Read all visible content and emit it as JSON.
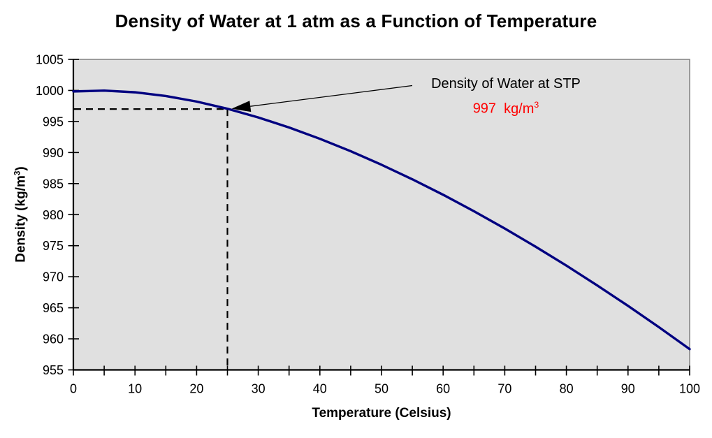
{
  "chart_data": {
    "type": "line",
    "title": "Density of Water at 1 atm as a Function of Temperature",
    "xlabel": "Temperature (Celsius)",
    "ylabel": "Density (kg/m³)",
    "ylabel_parts": {
      "pre": "Density (kg/m",
      "sup": "3",
      "post": ")"
    },
    "xlim": [
      0,
      100
    ],
    "ylim": [
      955,
      1005
    ],
    "x_major_ticks": [
      0,
      10,
      20,
      30,
      40,
      50,
      60,
      70,
      80,
      90,
      100
    ],
    "x_minor_tick_step": 5,
    "y_ticks": [
      955,
      960,
      965,
      970,
      975,
      980,
      985,
      990,
      995,
      1000,
      1005
    ],
    "grid": false,
    "legend": "none",
    "plot_bg_color": "#E0E0E0",
    "plot_border_color": "#808080",
    "axis_color": "#000000",
    "series": [
      {
        "name": "Density of Water",
        "color": "#000080",
        "x": [
          0,
          5,
          10,
          15,
          20,
          25,
          30,
          35,
          40,
          45,
          50,
          55,
          60,
          65,
          70,
          75,
          80,
          85,
          90,
          95,
          100
        ],
        "y": [
          999.84,
          999.97,
          999.7,
          999.1,
          998.21,
          997.05,
          995.65,
          994.03,
          992.21,
          990.21,
          988.03,
          985.69,
          983.2,
          980.55,
          977.76,
          974.84,
          971.79,
          968.61,
          965.31,
          961.89,
          958.35
        ]
      }
    ],
    "annotation": {
      "label": "Density of Water at STP",
      "value_number": "997",
      "value_unit": "kg/m",
      "value_sup": "3",
      "value_color": "#FF0000",
      "point_x": 25,
      "point_y": 997,
      "callout_style": "dashed lines to axes with leader arrow"
    }
  }
}
